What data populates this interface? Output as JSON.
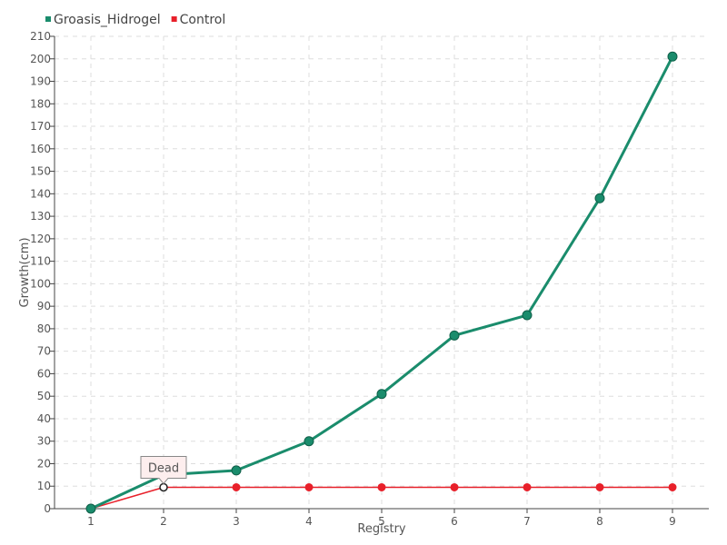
{
  "chart_data": {
    "type": "line",
    "categories": [
      "1",
      "2",
      "3",
      "4",
      "5",
      "6",
      "7",
      "8",
      "9"
    ],
    "series": [
      {
        "name": "Groasis_Hidrogel",
        "color": "#1a8c6c",
        "values": [
          0,
          15,
          17,
          30,
          51,
          77,
          86,
          138,
          201
        ]
      },
      {
        "name": "Control",
        "color": "#e8202a",
        "values": [
          0,
          9.5,
          9.5,
          9.5,
          9.5,
          9.5,
          9.5,
          9.5,
          9.5
        ]
      }
    ],
    "xlabel": "Registry",
    "ylabel": "Growth(cm)",
    "ylim": [
      0,
      210
    ],
    "ytick_step": 10,
    "grid": true,
    "legend_position": "top-left",
    "annotations": [
      {
        "text": "Dead",
        "series": "Control",
        "category": "2"
      }
    ]
  }
}
